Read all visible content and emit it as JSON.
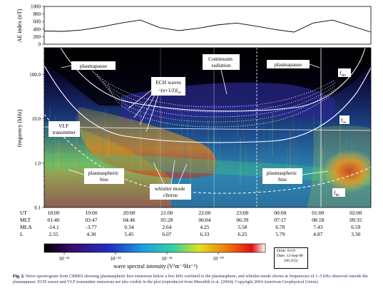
{
  "chart_data": [
    {
      "type": "line",
      "ylabel": "AE index (nT)",
      "ylim": [
        0,
        1000
      ],
      "yticks": [
        "1000",
        "800",
        "600",
        "400",
        "200",
        "0"
      ],
      "x": [
        "18:00",
        "18:30",
        "19:00",
        "19:30",
        "20:00",
        "20:30",
        "21:00",
        "21:30",
        "22:00",
        "22:30",
        "23:00",
        "23:30",
        "00:00",
        "00:30",
        "01:00",
        "01:30",
        "02:00",
        "02:30"
      ],
      "series": [
        {
          "values": [
            350,
            340,
            380,
            460,
            560,
            640,
            440,
            360,
            420,
            510,
            560,
            480,
            390,
            320,
            560,
            640,
            480,
            320
          ]
        }
      ]
    },
    {
      "type": "heatmap",
      "ylabel": "frequency (kHz)",
      "yscale": "log",
      "ylim": [
        0.1,
        400
      ],
      "yticks": [
        "100.0",
        "10.0",
        "1.0",
        "0.1"
      ],
      "colorbar_label": "wave spectral intensity (V²m⁻²Hz⁻¹)",
      "colorbar_ticks": [
        "10⁻¹⁶",
        "10⁻¹⁴",
        "10⁻¹²",
        "10⁻¹⁰"
      ],
      "colorbar_colors": [
        "#000000",
        "#3a0a6a",
        "#2030c0",
        "#20a0e0",
        "#30d0a0",
        "#e0e020",
        "#f08010",
        "#e01010",
        "#ffffff"
      ],
      "annotations": [
        "plasmapause",
        "ECH waves",
        "~(n+1/2)f",
        "Continuum radiation",
        "plasmapause",
        "f",
        "f",
        "VLF transmitter",
        "plasmaspheric hiss",
        "whistler mode chorus",
        "plasmaspheric hiss",
        "f"
      ],
      "ephemeris": {
        "row_labels": [
          "UT",
          "MLT",
          "MLA",
          "L"
        ],
        "UT": [
          "18:00",
          "19:00",
          "20:00",
          "21:00",
          "22:00",
          "23:00",
          "00:00",
          "01:00",
          "02:00"
        ],
        "MLT": [
          "01:40",
          "03:47",
          "04:46",
          "05:28",
          "06:04",
          "06:39",
          "07:17",
          "08:18",
          "09:35"
        ],
        "MLA": [
          "-14.1",
          "-3.77",
          "0.34",
          "2.64",
          "4.25",
          "5.58",
          "6.70",
          "7.43",
          "6.59"
        ],
        "L": [
          "2.55",
          "4.30",
          "5.45",
          "6.07",
          "6.33",
          "6.25",
          "5.79",
          "4.87",
          "3.30"
        ]
      }
    }
  ],
  "orbit_box": {
    "line1": "Orbit: 0119",
    "line2": "Date: 12-Sep-90",
    "line3": "(90.255)"
  },
  "caption": {
    "label": "Fig. 2.",
    "text": "Wave spectrogram from CRRES showing plasmaspheric hiss emissions below a few kHz confined to the plasmasphere, and whistler-mode chorus at frequencies of 1–5 kHz observed outside the plasmapause. ECH waves and VLF transmitter emissions are also visible in the plot (reproduced from Meredith et al. (2004); Copyright 2004 American Geophysical Union)."
  }
}
